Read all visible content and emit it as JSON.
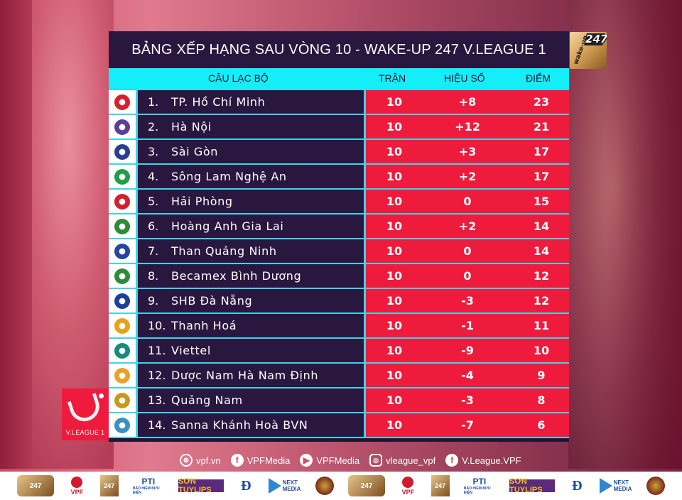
{
  "title": "BẢNG XẾP HẠNG SAU VÒNG 10 - WAKE-UP 247 V.LEAGUE 1",
  "sponsor_badge": {
    "label_small": "wake-up",
    "label_number": "247"
  },
  "columns": {
    "club": "CÂU LẠC BỘ",
    "played": "TRẬN",
    "goal_diff": "HIỆU SỐ",
    "points": "ĐIỂM"
  },
  "colors": {
    "panel": "#2a1740",
    "header": "#13eef8",
    "stat_cells": "#ee1b3d",
    "divider": "#3fd4e6"
  },
  "standings": [
    {
      "rank": "1.",
      "club": "TP. Hồ Chí Minh",
      "played": "10",
      "gd": "+8",
      "pts": "23",
      "logo": "hcm-crest",
      "logo_color": "#d81f2a"
    },
    {
      "rank": "2.",
      "club": "Hà Nội",
      "played": "10",
      "gd": "+12",
      "pts": "21",
      "logo": "hanoi-crest",
      "logo_color": "#5a3e9a"
    },
    {
      "rank": "3.",
      "club": "Sài Gòn",
      "played": "10",
      "gd": "+3",
      "pts": "17",
      "logo": "saigon-crest",
      "logo_color": "#2b3f8f"
    },
    {
      "rank": "4.",
      "club": "Sông Lam Nghệ An",
      "played": "10",
      "gd": "+2",
      "pts": "17",
      "logo": "slna-crest",
      "logo_color": "#1f9e4a"
    },
    {
      "rank": "5.",
      "club": "Hải Phòng",
      "played": "10",
      "gd": "0",
      "pts": "15",
      "logo": "haiphong-crest",
      "logo_color": "#d0202e"
    },
    {
      "rank": "6.",
      "club": "Hoàng Anh Gia Lai",
      "played": "10",
      "gd": "+2",
      "pts": "14",
      "logo": "hagl-crest",
      "logo_color": "#2f8a3c"
    },
    {
      "rank": "7.",
      "club": "Than Quảng Ninh",
      "played": "10",
      "gd": "0",
      "pts": "14",
      "logo": "tqn-crest",
      "logo_color": "#2446a0"
    },
    {
      "rank": "8.",
      "club": "Becamex Bình Dương",
      "played": "10",
      "gd": "0",
      "pts": "12",
      "logo": "binhduong-crest",
      "logo_color": "#2e8b3a"
    },
    {
      "rank": "9.",
      "club": "SHB Đà Nẵng",
      "played": "10",
      "gd": "-3",
      "pts": "12",
      "logo": "danang-crest",
      "logo_color": "#1b3f9a"
    },
    {
      "rank": "10.",
      "club": "Thanh Hoá",
      "played": "10",
      "gd": "-1",
      "pts": "11",
      "logo": "thanhhoa-crest",
      "logo_color": "#e8a21a"
    },
    {
      "rank": "11.",
      "club": "Viettel",
      "played": "10",
      "gd": "-9",
      "pts": "10",
      "logo": "viettel-crest",
      "logo_color": "#1a8a7a"
    },
    {
      "rank": "12.",
      "club": "Dược Nam Hà Nam Định",
      "played": "10",
      "gd": "-4",
      "pts": "9",
      "logo": "namdinh-crest",
      "logo_color": "#e8a12a"
    },
    {
      "rank": "13.",
      "club": "Quảng Nam",
      "played": "10",
      "gd": "-3",
      "pts": "8",
      "logo": "quangnam-crest",
      "logo_color": "#c79a1f"
    },
    {
      "rank": "14.",
      "club": "Sanna Khánh Hoà BVN",
      "played": "10",
      "gd": "-7",
      "pts": "6",
      "logo": "khanhhoa-crest",
      "logo_color": "#3a8fc4"
    }
  ],
  "league_logo": {
    "label": "V.LEAGUE 1"
  },
  "social": [
    {
      "icon": "globe-icon",
      "glyph": "⊕",
      "label": "vpf.vn"
    },
    {
      "icon": "facebook-icon",
      "glyph": "f",
      "label": "VPFMedia"
    },
    {
      "icon": "youtube-icon",
      "glyph": "▶",
      "label": "VPFMedia"
    },
    {
      "icon": "instagram-icon",
      "glyph": "◎",
      "label": "vleague_vpf"
    },
    {
      "icon": "facebook-icon",
      "glyph": "f",
      "label": "V.League.VPF"
    }
  ],
  "sponsors": [
    {
      "name": "wakeup-247-vpf-logo",
      "text": "247"
    },
    {
      "name": "vpf-logo",
      "text": "VPF"
    },
    {
      "name": "wakeup-247-logo",
      "text": "247"
    },
    {
      "name": "pti-logo",
      "text": "PTI",
      "sub": "BẢO HIỂM BƯU ĐIỆN"
    },
    {
      "name": "son-tuylips-logo",
      "text": "SƠN TUYLIPS"
    },
    {
      "name": "dong-luc-logo",
      "text": "Đ"
    },
    {
      "name": "next-media-logo",
      "text": "NEXT MEDIA"
    },
    {
      "name": "seal-logo",
      "text": ""
    },
    {
      "name": "wakeup-247-vpf-logo",
      "text": "247"
    },
    {
      "name": "vpf-logo",
      "text": "VPF"
    },
    {
      "name": "wakeup-247-logo",
      "text": "247"
    },
    {
      "name": "pti-logo",
      "text": "PTI",
      "sub": "BẢO HIỂM BƯU ĐIỆN"
    },
    {
      "name": "son-tuylips-logo",
      "text": "SƠN TUYLIPS"
    },
    {
      "name": "dong-luc-logo",
      "text": "Đ"
    },
    {
      "name": "next-media-logo",
      "text": "NEXT MEDIA"
    },
    {
      "name": "seal-logo",
      "text": ""
    }
  ]
}
